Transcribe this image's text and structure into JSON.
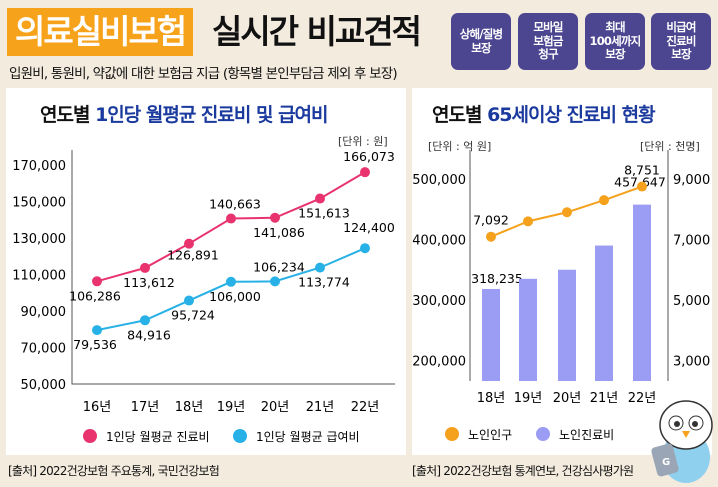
{
  "header": {
    "title_highlight": "의료실비보험",
    "title_rest": "실시간 비교견적",
    "subtitle": "입원비, 통원비, 약값에 대한 보험금 지급 (항목별 본인부담금 제외 후 보장)",
    "badges": [
      "상해/질병\n보장",
      "모바일\n보험금\n청구",
      "최대\n100세까지\n보장",
      "비급여\n진료비\n보장"
    ]
  },
  "left_panel": {
    "title_black": "연도별",
    "title_blue": "1인당 월평균 진료비 및 급여비",
    "unit": "[단위 : 원]",
    "source": "[출처] 2022건강보험 주요통계, 국민건강보험"
  },
  "right_panel": {
    "title_black": "연도별",
    "title_blue": "65세이상 진료비 현황",
    "unit_left": "[단위 : 억 원]",
    "unit_right": "[단위 : 천명]",
    "source": "[출처] 2022건강보험 통계연보, 건강심사평가원"
  },
  "chart_data": [
    {
      "type": "line",
      "categories": [
        "16년",
        "17년",
        "18년",
        "19년",
        "20년",
        "21년",
        "22년"
      ],
      "ylim": [
        50000,
        170000
      ],
      "yticks": [
        "170,000",
        "150,000",
        "130,000",
        "110,000",
        "90,000",
        "70,000",
        "50,000"
      ],
      "grid": false,
      "legend": "bottom",
      "series": [
        {
          "name": "1인당 월평균 진료비",
          "color": "#e8336f",
          "values": [
            106286,
            113612,
            126891,
            140663,
            141086,
            151613,
            166073
          ],
          "labels": [
            "106,286",
            "113,612",
            "126,891",
            "140,663",
            "141,086",
            "151,613",
            "166,073"
          ]
        },
        {
          "name": "1인당 월평균 급여비",
          "color": "#27b1e6",
          "values": [
            79536,
            84916,
            95724,
            106000,
            106234,
            113774,
            124400
          ],
          "labels": [
            "79,536",
            "84,916",
            "95,724",
            "106,000",
            "106,234",
            "113,774",
            "124,400"
          ]
        }
      ]
    },
    {
      "type": "bar+line",
      "categories": [
        "18년",
        "19년",
        "20년",
        "21년",
        "22년"
      ],
      "grid": false,
      "legend": "bottom",
      "ylim_left": [
        200000,
        500000
      ],
      "yticks_left": [
        "500,000",
        "400,000",
        "300,000",
        "200,000"
      ],
      "ylim_right": [
        3000,
        9000
      ],
      "yticks_right": [
        "9,000",
        "7,000",
        "5,000",
        "3,000"
      ],
      "series": [
        {
          "name": "노인인구",
          "type": "line",
          "axis": "right",
          "color": "#f5a11c",
          "values": [
            7092,
            7600,
            7900,
            8300,
            8751
          ],
          "labels": [
            "7,092",
            "",
            "",
            "",
            "8,751"
          ]
        },
        {
          "name": "노인진료비",
          "type": "bar",
          "axis": "left",
          "color": "#9b9cf3",
          "values": [
            318235,
            335000,
            350000,
            390000,
            457647
          ],
          "labels": [
            "318,235",
            "",
            "",
            "",
            "457,647"
          ]
        }
      ]
    }
  ]
}
